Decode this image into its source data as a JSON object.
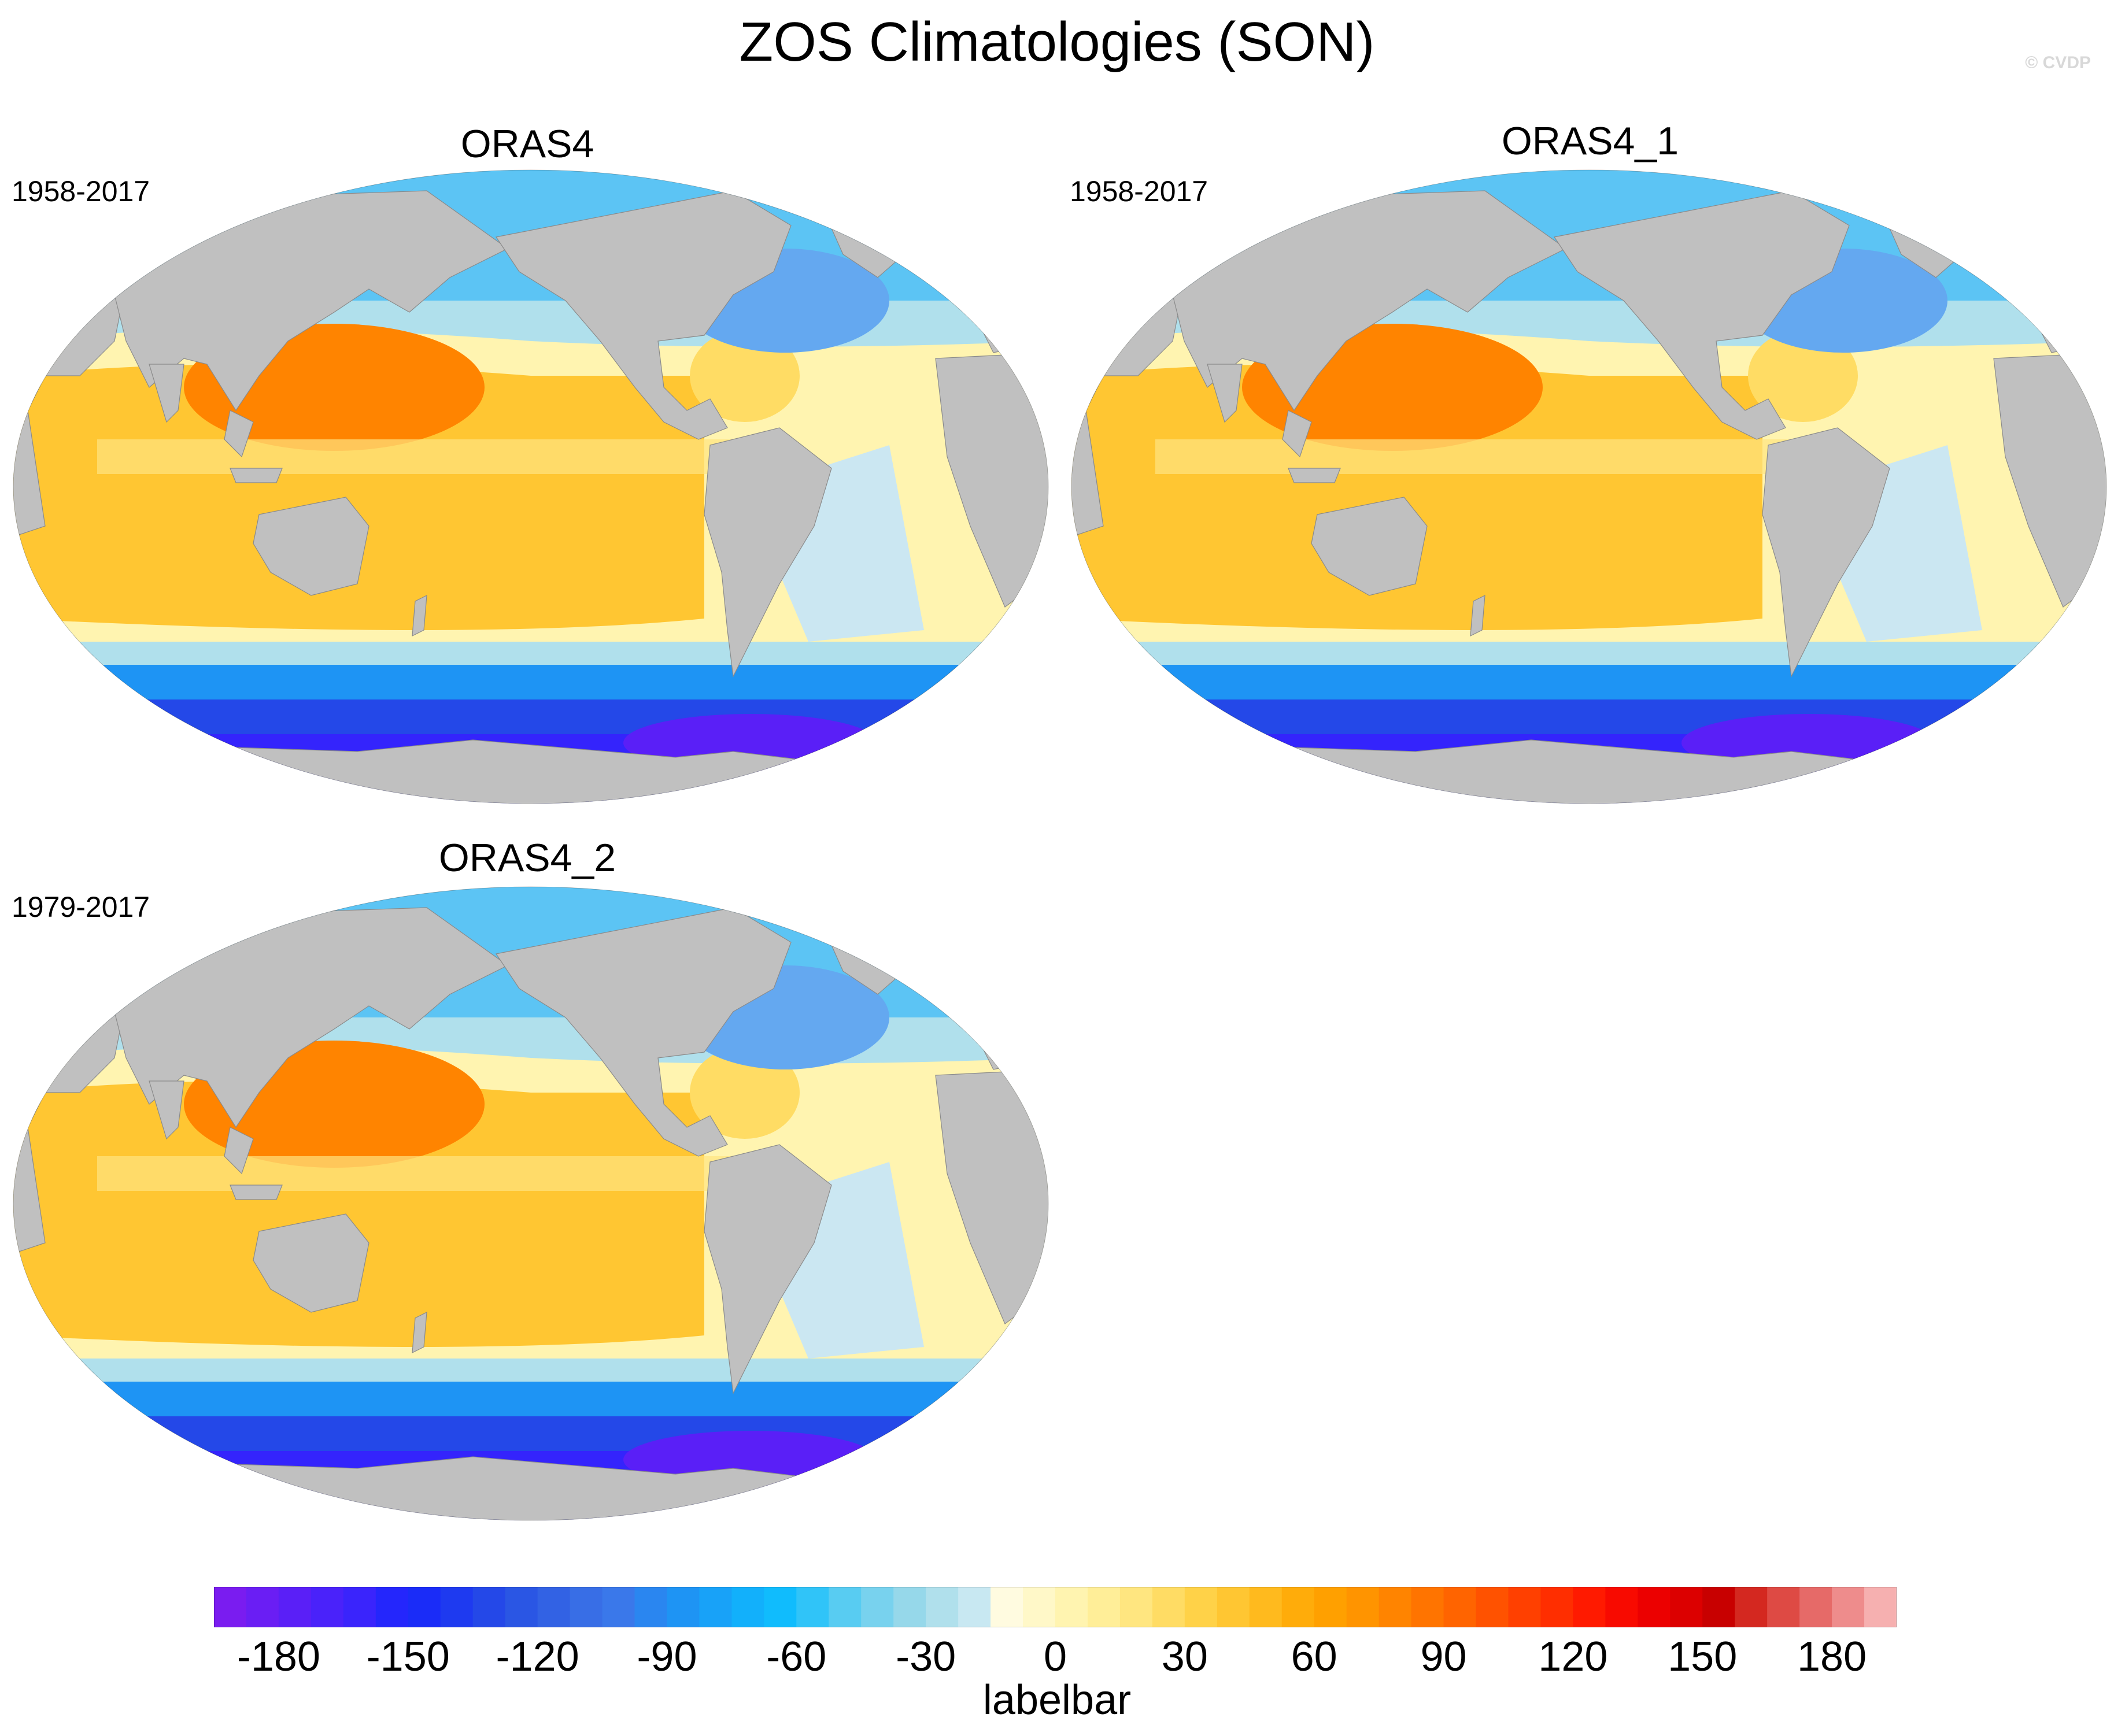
{
  "title": "ZOS Climatologies (SON)",
  "credit": "© CVDP",
  "panels": [
    {
      "name": "ORAS4",
      "period": "1958-2017"
    },
    {
      "name": "ORAS4_1",
      "period": "1958-2017"
    },
    {
      "name": "ORAS4_2",
      "period": "1979-2017"
    }
  ],
  "colorbar": {
    "title": "labelbar",
    "tick_labels": [
      "-180",
      "-150",
      "-120",
      "-90",
      "-60",
      "-30",
      "0",
      "30",
      "60",
      "90",
      "120",
      "150",
      "180"
    ],
    "colors": [
      "#7a1cf0",
      "#6a1ef4",
      "#5a1ff7",
      "#4a22fa",
      "#3a24fc",
      "#2426fc",
      "#1a2cf8",
      "#1e3af0",
      "#2448e8",
      "#2a56e4",
      "#3262e4",
      "#386ee6",
      "#3a78ea",
      "#2a86f0",
      "#1e94f4",
      "#18a2f8",
      "#12b0fb",
      "#10bcfd",
      "#30c4f8",
      "#58ccf2",
      "#78d2ee",
      "#96d8ea",
      "#b0e0ec",
      "#c8e8f2",
      "#fffbe0",
      "#fff8c8",
      "#fff4b0",
      "#ffee98",
      "#ffe680",
      "#ffdc64",
      "#ffd248",
      "#ffc632",
      "#ffba1e",
      "#ffac0a",
      "#ffa000",
      "#ff9400",
      "#ff8400",
      "#ff7400",
      "#ff6400",
      "#ff5200",
      "#ff4000",
      "#ff2e00",
      "#ff1a00",
      "#f80a00",
      "#ec0000",
      "#dc0000",
      "#c80000",
      "#d42820",
      "#de4a44",
      "#e66a68",
      "#ee8c8c",
      "#f6b0b0"
    ]
  },
  "legend_colors": {
    "land": "#c0c0c0",
    "strong_negative": "#5a1ff7",
    "negative": "#1e94f4",
    "near_zero_negative": "#b0e0ec",
    "near_zero_positive": "#fff4b0",
    "positive": "#ffc632",
    "strong_positive": "#ff8400"
  }
}
